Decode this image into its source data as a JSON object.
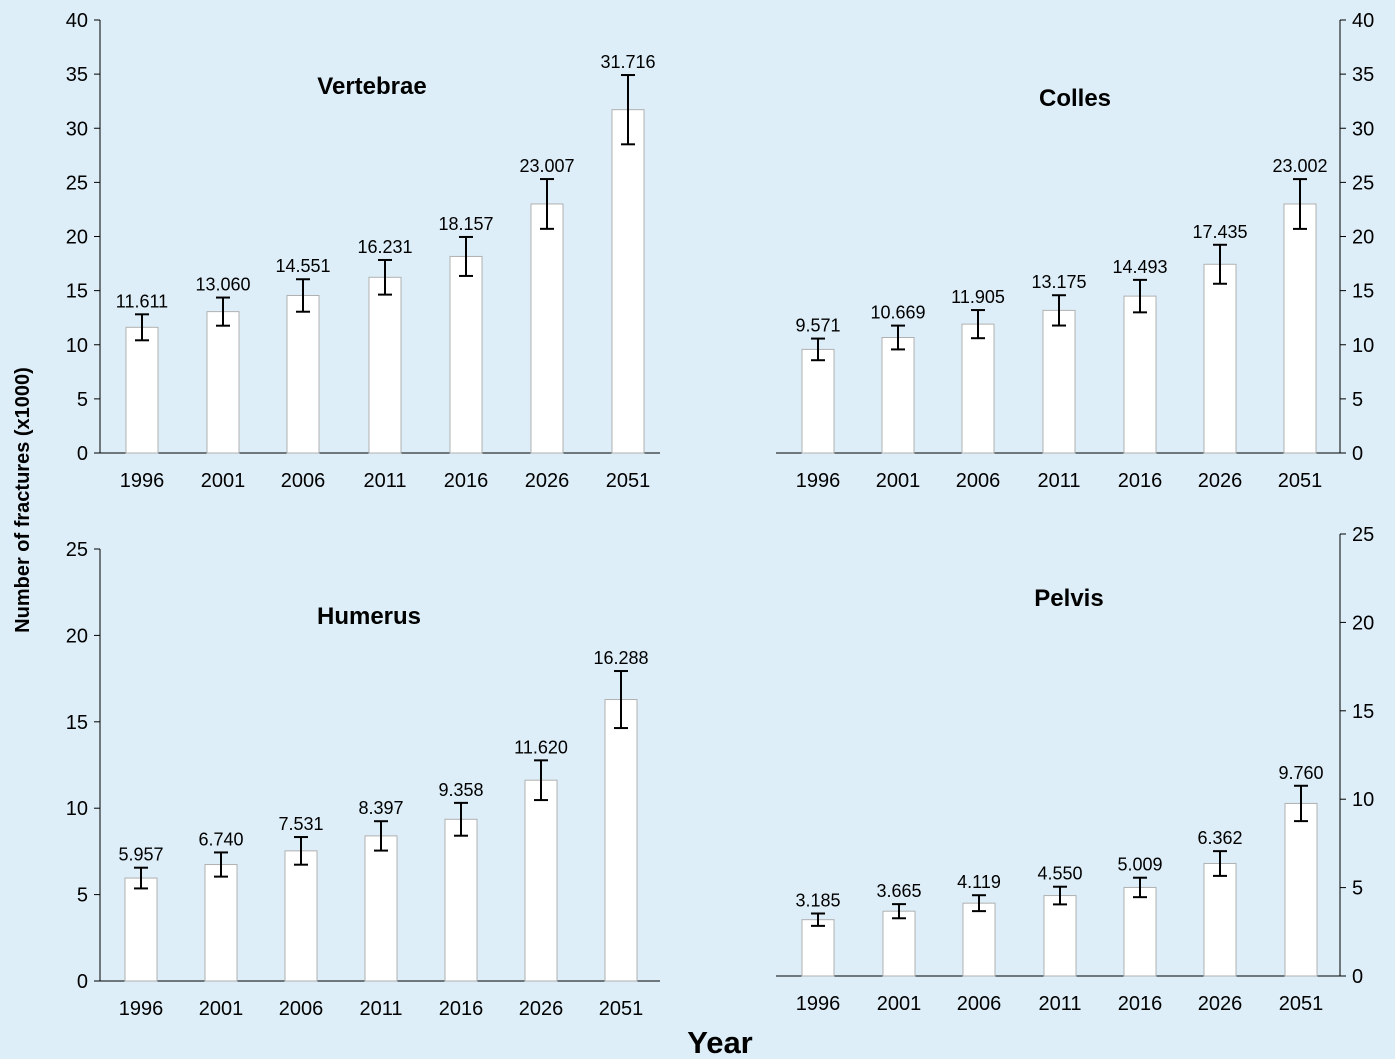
{
  "figure": {
    "ylabel": "Number of fractures (x1000)",
    "xlabel": "Year",
    "background": "#ddeef8",
    "bar_fill": "#ffffff",
    "bar_stroke": "#b0b0b0"
  },
  "chart_data": [
    {
      "type": "bar",
      "title": "Vertebrae",
      "categories": [
        "1996",
        "2001",
        "2006",
        "2011",
        "2016",
        "2026",
        "2051"
      ],
      "values": [
        11.611,
        13.06,
        14.551,
        16.231,
        18.157,
        23.007,
        31.716
      ],
      "value_labels": [
        "11.611",
        "13.060",
        "14.551",
        "16.231",
        "18.157",
        "23.007",
        "31.716"
      ],
      "errors": [
        1.2,
        1.3,
        1.5,
        1.6,
        1.8,
        2.3,
        3.2
      ],
      "ylim": [
        0,
        40
      ],
      "yticks": [
        "0",
        "5",
        "10",
        "15",
        "20",
        "25",
        "30",
        "35",
        "40"
      ],
      "y_axis_side": "left",
      "grid": false
    },
    {
      "type": "bar",
      "title": "Colles",
      "categories": [
        "1996",
        "2001",
        "2006",
        "2011",
        "2016",
        "2026",
        "2051"
      ],
      "values": [
        9.571,
        10.669,
        11.905,
        13.175,
        14.493,
        17.435,
        23.002
      ],
      "value_labels": [
        "9.571",
        "10.669",
        "11.905",
        "13.175",
        "14.493",
        "17.435",
        "23.002"
      ],
      "errors": [
        1.0,
        1.1,
        1.3,
        1.4,
        1.5,
        1.8,
        2.3
      ],
      "ylim": [
        0,
        40
      ],
      "yticks": [
        "0",
        "5",
        "10",
        "15",
        "20",
        "25",
        "30",
        "35",
        "40"
      ],
      "y_axis_side": "right",
      "grid": false
    },
    {
      "type": "bar",
      "title": "Humerus",
      "categories": [
        "1996",
        "2001",
        "2006",
        "2011",
        "2016",
        "2026",
        "2051"
      ],
      "values": [
        5.957,
        6.74,
        7.531,
        8.397,
        9.358,
        11.62,
        16.288
      ],
      "value_labels": [
        "5.957",
        "6.740",
        "7.531",
        "8.397",
        "9.358",
        "11.620",
        "16.288"
      ],
      "errors": [
        0.6,
        0.7,
        0.8,
        0.85,
        0.95,
        1.15,
        1.65
      ],
      "ylim": [
        0,
        25
      ],
      "yticks": [
        "0",
        "5",
        "10",
        "15",
        "20",
        "25"
      ],
      "y_axis_side": "left",
      "grid": false
    },
    {
      "type": "bar",
      "title": "Pelvis",
      "categories": [
        "1996",
        "2001",
        "2006",
        "2011",
        "2016",
        "2026",
        "2051"
      ],
      "values": [
        3.185,
        3.665,
        4.119,
        4.55,
        5.009,
        6.362,
        9.76
      ],
      "value_labels": [
        "3.185",
        "3.665",
        "4.119",
        "4.550",
        "5.009",
        "6.362",
        "9.760"
      ],
      "errors": [
        0.35,
        0.4,
        0.45,
        0.5,
        0.55,
        0.7,
        1.0
      ],
      "ylim": [
        0,
        25
      ],
      "yticks": [
        "0",
        "5",
        "10",
        "15",
        "20",
        "25"
      ],
      "y_axis_side": "right",
      "grid": false
    }
  ]
}
